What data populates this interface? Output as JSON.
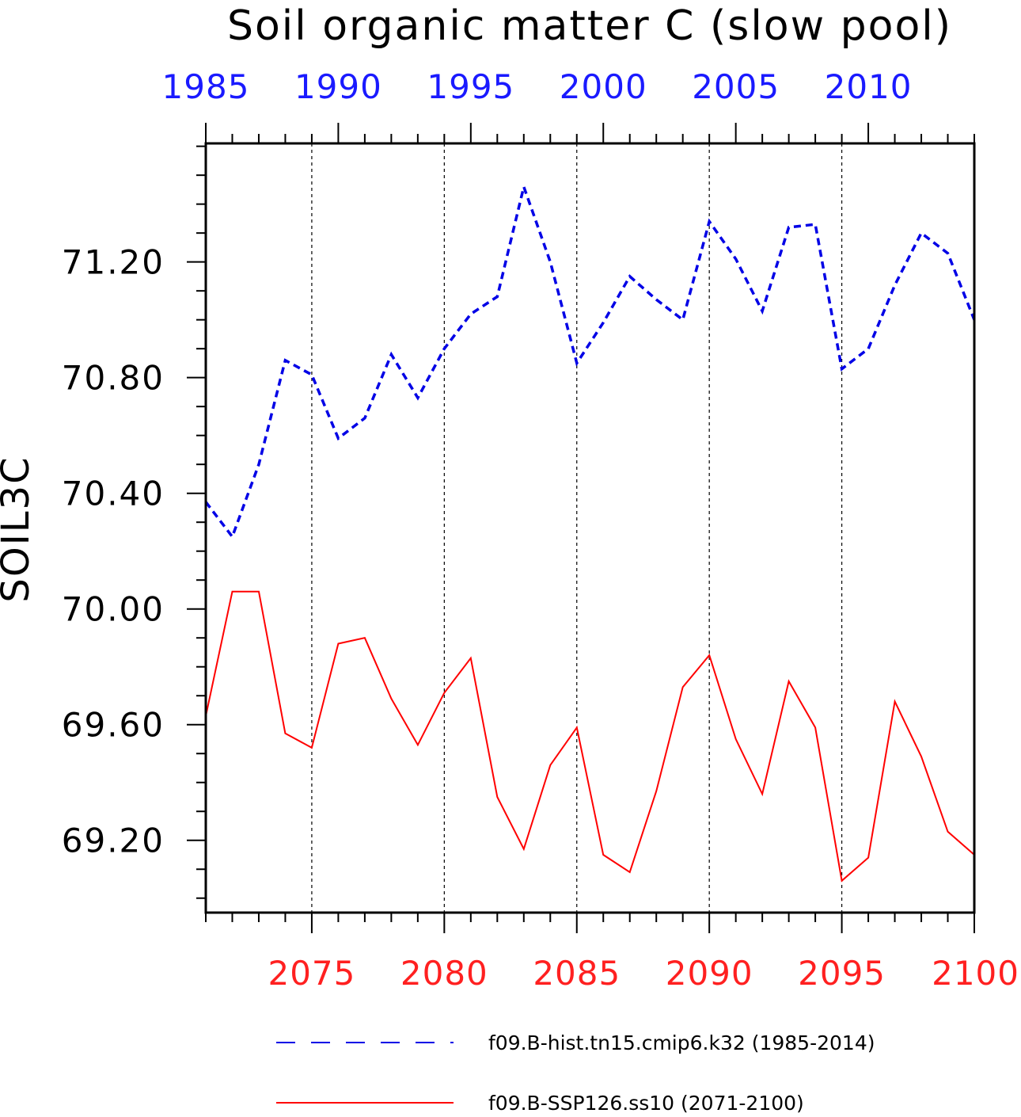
{
  "chart_data": {
    "type": "line",
    "title": "Soil organic matter C (slow pool)",
    "ylabel": "SOIL3C",
    "ylim": [
      68.95,
      71.61
    ],
    "yticks": [
      "69.20",
      "69.60",
      "70.00",
      "70.40",
      "70.80",
      "71.20"
    ],
    "ytick_values": [
      69.2,
      69.6,
      70.0,
      70.4,
      70.8,
      71.2
    ],
    "grid": "vertical-dashed",
    "legend_placement": "bottom",
    "x_top": {
      "range": [
        1985,
        2014
      ],
      "ticks": [
        "1985",
        "1990",
        "1995",
        "2000",
        "2005",
        "2010"
      ],
      "tick_values": [
        1985,
        1990,
        1995,
        2000,
        2005,
        2010
      ],
      "color": "#1a1aff"
    },
    "x_bottom": {
      "range": [
        2071,
        2100
      ],
      "ticks": [
        "2075",
        "2080",
        "2085",
        "2090",
        "2095",
        "2100"
      ],
      "tick_values": [
        2075,
        2080,
        2085,
        2090,
        2095,
        2100
      ],
      "color": "#ff2020"
    },
    "series": [
      {
        "name": "f09.B-hist.tn15.cmip6.k32 (1985-2014)",
        "axis": "top",
        "style": "dashed",
        "color": "#0000e6",
        "x": [
          1985,
          1986,
          1987,
          1988,
          1989,
          1990,
          1991,
          1992,
          1993,
          1994,
          1995,
          1996,
          1997,
          1998,
          1999,
          2000,
          2001,
          2002,
          2003,
          2004,
          2005,
          2006,
          2007,
          2008,
          2009,
          2010,
          2011,
          2012,
          2013,
          2014
        ],
        "values": [
          70.37,
          70.25,
          70.5,
          70.86,
          70.81,
          70.59,
          70.66,
          70.88,
          70.73,
          70.9,
          71.02,
          71.08,
          71.46,
          71.2,
          70.85,
          70.99,
          71.15,
          71.07,
          71.0,
          71.34,
          71.21,
          71.03,
          71.32,
          71.33,
          70.83,
          70.9,
          71.12,
          71.3,
          71.23,
          71.0
        ]
      },
      {
        "name": "f09.B-SSP126.ss10 (2071-2100)",
        "axis": "bottom",
        "style": "solid",
        "color": "#ff0000",
        "x": [
          2071,
          2072,
          2073,
          2074,
          2075,
          2076,
          2077,
          2078,
          2079,
          2080,
          2081,
          2082,
          2083,
          2084,
          2085,
          2086,
          2087,
          2088,
          2089,
          2090,
          2091,
          2092,
          2093,
          2094,
          2095,
          2096,
          2097,
          2098,
          2099,
          2100
        ],
        "values": [
          69.63,
          70.06,
          70.06,
          69.57,
          69.52,
          69.88,
          69.9,
          69.69,
          69.53,
          69.71,
          69.83,
          69.35,
          69.17,
          69.46,
          69.59,
          69.15,
          69.09,
          69.37,
          69.73,
          69.84,
          69.55,
          69.36,
          69.75,
          69.59,
          69.06,
          69.14,
          69.68,
          69.49,
          69.23,
          69.15
        ]
      }
    ]
  }
}
